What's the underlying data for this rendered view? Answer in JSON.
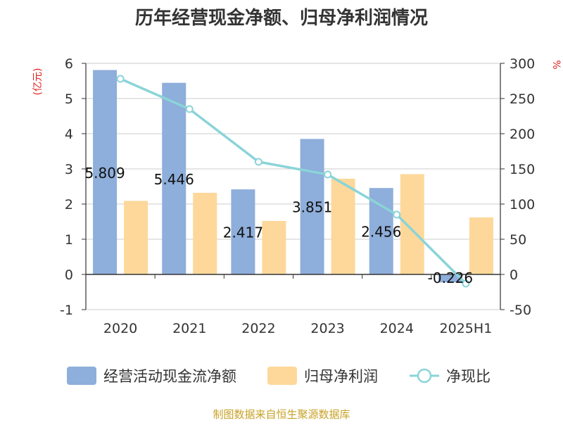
{
  "title": "历年经营现金净额、归母净利润情况",
  "source": "制图数据来自恒生聚源数据库",
  "chart_data": {
    "type": "bar",
    "categories": [
      "2020",
      "2021",
      "2022",
      "2023",
      "2024",
      "2025H1"
    ],
    "left_axis": {
      "unit": "(亿元)",
      "ylim": [
        -1,
        6
      ],
      "ticks": [
        "-1",
        "0",
        "1",
        "2",
        "3",
        "4",
        "5",
        "6"
      ]
    },
    "right_axis": {
      "unit": "%",
      "ylim": [
        -50,
        300
      ],
      "ticks": [
        "-50",
        "0",
        "50",
        "100",
        "150",
        "200",
        "250",
        "300"
      ]
    },
    "grid": true,
    "legend_position": "bottom",
    "series": [
      {
        "name": "经营活动现金流净额",
        "type": "bar",
        "axis": "left",
        "color": "#8eaedb",
        "values": [
          5.809,
          5.446,
          2.417,
          3.851,
          2.456,
          -0.226
        ],
        "labels": [
          "5.809",
          "5.446",
          "2.417",
          "3.851",
          "2.456",
          "-0.226"
        ]
      },
      {
        "name": "归母净利润",
        "type": "bar",
        "axis": "left",
        "color": "#fdd89a",
        "values": [
          2.09,
          2.32,
          1.52,
          2.72,
          2.85,
          1.62
        ]
      },
      {
        "name": "净现比",
        "type": "line",
        "axis": "right",
        "color": "#8ad4d8",
        "values": [
          278,
          235,
          160,
          142,
          85,
          -13
        ]
      }
    ]
  }
}
